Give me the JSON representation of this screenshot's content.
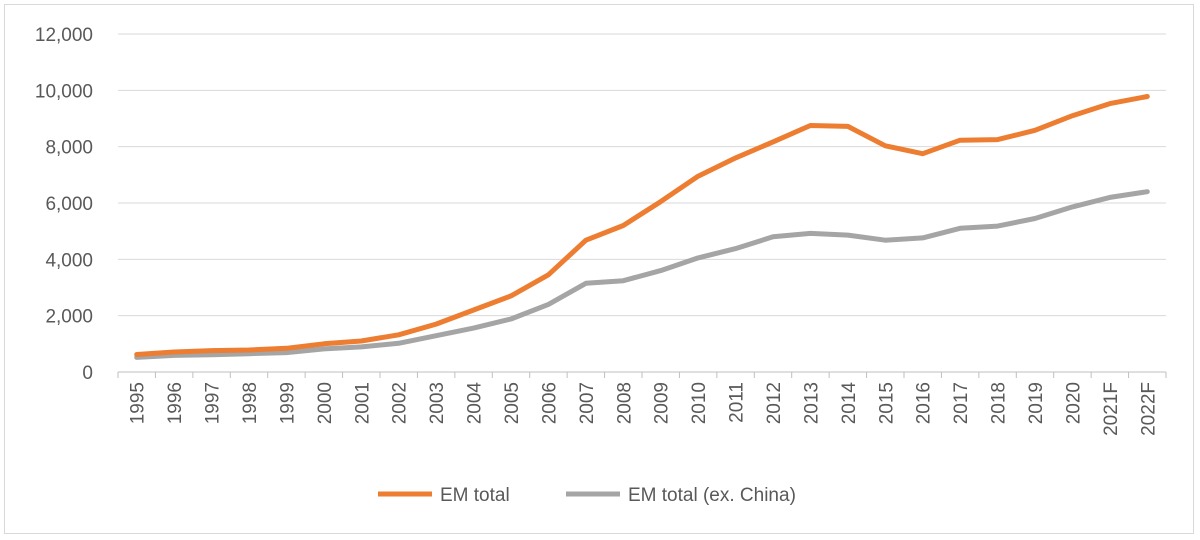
{
  "chart_data": {
    "type": "line",
    "title": "",
    "xlabel": "",
    "ylabel": "",
    "ylim": [
      0,
      12000
    ],
    "yticks": [
      0,
      2000,
      4000,
      6000,
      8000,
      10000,
      12000
    ],
    "ytick_labels": [
      "0",
      "2,000",
      "4,000",
      "6,000",
      "8,000",
      "10,000",
      "12,000"
    ],
    "categories": [
      "1995",
      "1996",
      "1997",
      "1998",
      "1999",
      "2000",
      "2001",
      "2002",
      "2003",
      "2004",
      "2005",
      "2006",
      "2007",
      "2008",
      "2009",
      "2010",
      "2011",
      "2012",
      "2013",
      "2014",
      "2015",
      "2016",
      "2017",
      "2018",
      "2019",
      "2020",
      "2021F",
      "2022F"
    ],
    "grid": "horizontal",
    "legend": "bottom-center",
    "series": [
      {
        "name": "EM total",
        "color": "#ED7D31",
        "values": [
          620,
          710,
          760,
          780,
          840,
          1000,
          1100,
          1320,
          1700,
          2200,
          2700,
          3450,
          4680,
          5200,
          6050,
          6950,
          7600,
          8170,
          8750,
          8720,
          8030,
          7750,
          8230,
          8250,
          8580,
          9100,
          9530,
          9780
        ]
      },
      {
        "name": "EM total (ex. China)",
        "color": "#A5A5A5",
        "values": [
          520,
          590,
          610,
          650,
          690,
          820,
          890,
          1020,
          1290,
          1560,
          1880,
          2400,
          3150,
          3240,
          3600,
          4050,
          4380,
          4800,
          4920,
          4860,
          4680,
          4760,
          5100,
          5180,
          5450,
          5860,
          6200,
          6400
        ]
      }
    ]
  }
}
